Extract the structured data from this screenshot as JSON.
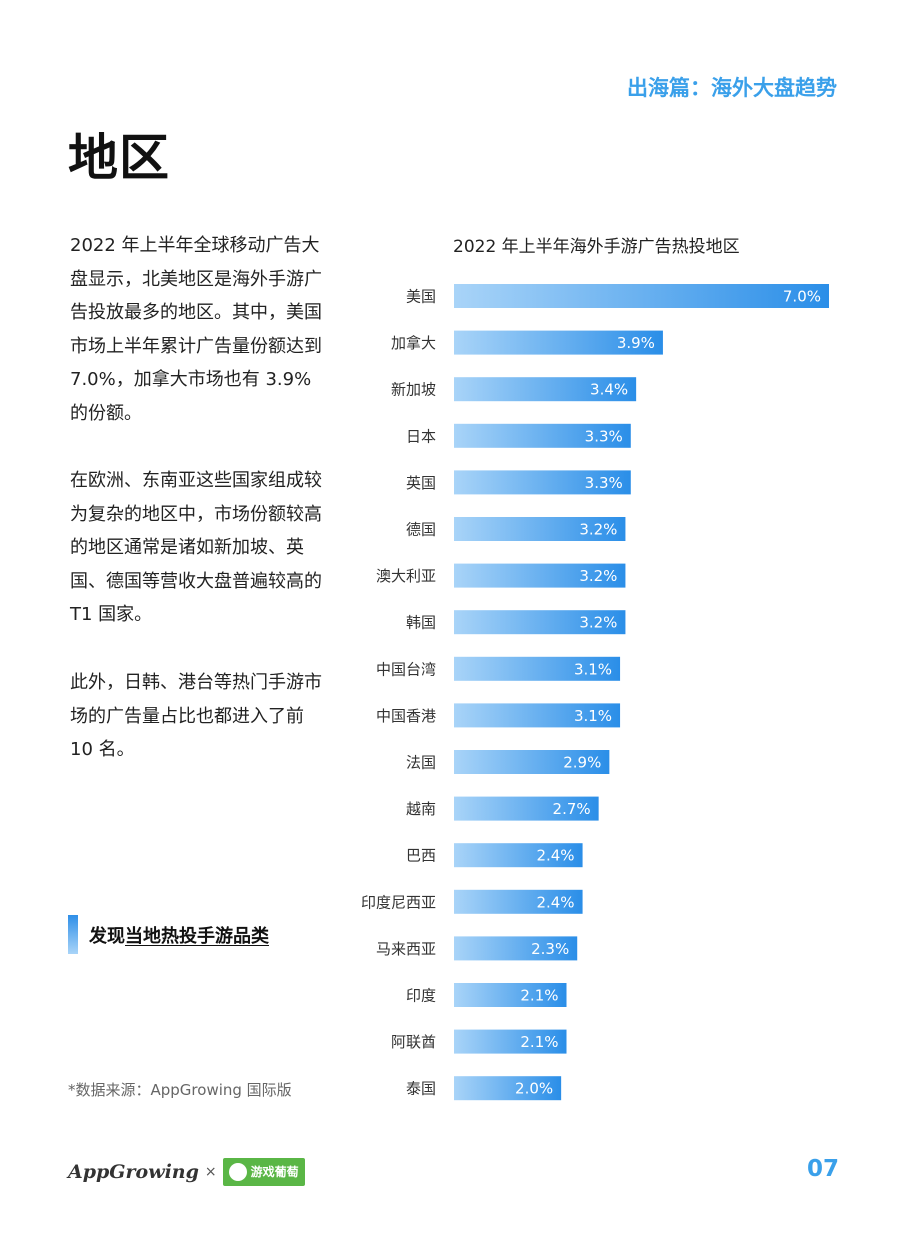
{
  "header": {
    "section_tag": "出海篇：海外大盘趋势"
  },
  "page_title": "地区",
  "paragraphs": [
    "2022 年上半年全球移动广告大盘显示，北美地区是海外手游广告投放最多的地区。其中，美国市场上半年累计广告量份额达到 7.0%，加拿大市场也有 3.9% 的份额。",
    "在欧洲、东南亚这些国家组成较为复杂的地区中，市场份额较高的地区通常是诸如新加坡、英国、德国等营收大盘普遍较高的 T1 国家。",
    "此外，日韩、港台等热门手游市场的广告量占比也都进入了前 10 名。"
  ],
  "link": {
    "prefix": "发现",
    "text": "当地热投手游品类"
  },
  "source_note": "*数据来源：AppGrowing 国际版",
  "footer": {
    "logo_left": "AppGrowing",
    "times": "×",
    "logo_right": "游戏葡萄",
    "page_number": "07"
  },
  "colors": {
    "accent": "#3aa0ea",
    "bar_start": "#a9d4f8",
    "bar_end": "#2a8ee8"
  },
  "chart_data": {
    "type": "bar",
    "orientation": "horizontal",
    "title": "2022 年上半年海外手游广告热投地区",
    "categories": [
      "美国",
      "加拿大",
      "新加坡",
      "日本",
      "英国",
      "德国",
      "澳大利亚",
      "韩国",
      "中国台湾",
      "中国香港",
      "法国",
      "越南",
      "巴西",
      "印度尼西亚",
      "马来西亚",
      "印度",
      "阿联酋",
      "泰国"
    ],
    "values": [
      7.0,
      3.9,
      3.4,
      3.3,
      3.3,
      3.2,
      3.2,
      3.2,
      3.1,
      3.1,
      2.9,
      2.7,
      2.4,
      2.4,
      2.3,
      2.1,
      2.1,
      2.0
    ],
    "labels": [
      "7.0%",
      "3.9%",
      "3.4%",
      "3.3%",
      "3.3%",
      "3.2%",
      "3.2%",
      "3.2%",
      "3.1%",
      "3.1%",
      "2.9%",
      "2.7%",
      "2.4%",
      "2.4%",
      "2.3%",
      "2.1%",
      "2.1%",
      "2.0%"
    ],
    "unit": "%",
    "xlim": [
      0,
      7.0
    ],
    "grid": false,
    "legend": "none"
  }
}
